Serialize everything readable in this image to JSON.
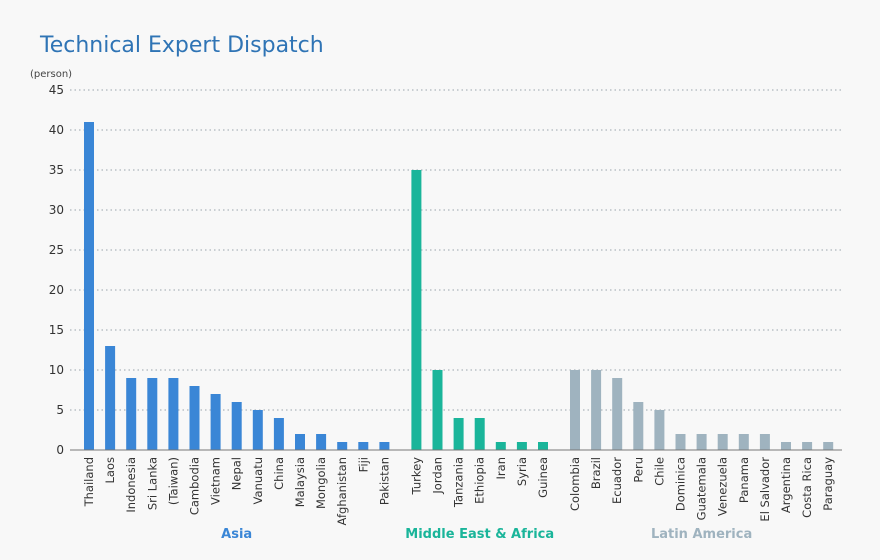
{
  "chart_data": {
    "type": "bar",
    "title": "Technical Expert Dispatch",
    "ylabel": "(person)",
    "ylim": [
      0,
      45
    ],
    "yticks": [
      0,
      5,
      10,
      15,
      20,
      25,
      30,
      35,
      40,
      45
    ],
    "grid": true,
    "groups": [
      {
        "name": "Asia",
        "color": "#3a86d6",
        "categories": [
          "Thailand",
          "Laos",
          "Indonesia",
          "Sri Lanka",
          "(Taiwan)",
          "Cambodia",
          "Vietnam",
          "Nepal",
          "Vanuatu",
          "China",
          "Malaysia",
          "Mongolia",
          "Afghanistan",
          "Fiji",
          "Pakistan"
        ],
        "values": [
          41,
          13,
          9,
          9,
          9,
          8,
          7,
          6,
          5,
          4,
          2,
          2,
          1,
          1,
          1
        ]
      },
      {
        "name": "Middle East & Africa",
        "color": "#1ab59a",
        "categories": [
          "Turkey",
          "Jordan",
          "Tanzania",
          "Ethiopia",
          "Iran",
          "Syria",
          "Guinea"
        ],
        "values": [
          35,
          10,
          4,
          4,
          1,
          1,
          1
        ]
      },
      {
        "name": "Latin America",
        "color": "#9fb3bf",
        "categories": [
          "Colombia",
          "Brazil",
          "Ecuador",
          "Peru",
          "Chile",
          "Dominica",
          "Guatemala",
          "Venezuela",
          "Panama",
          "El Salvador",
          "Argentina",
          "Costa Rica",
          "Paraguay"
        ],
        "values": [
          10,
          10,
          9,
          6,
          5,
          2,
          2,
          2,
          2,
          2,
          1,
          1,
          1
        ]
      }
    ]
  }
}
